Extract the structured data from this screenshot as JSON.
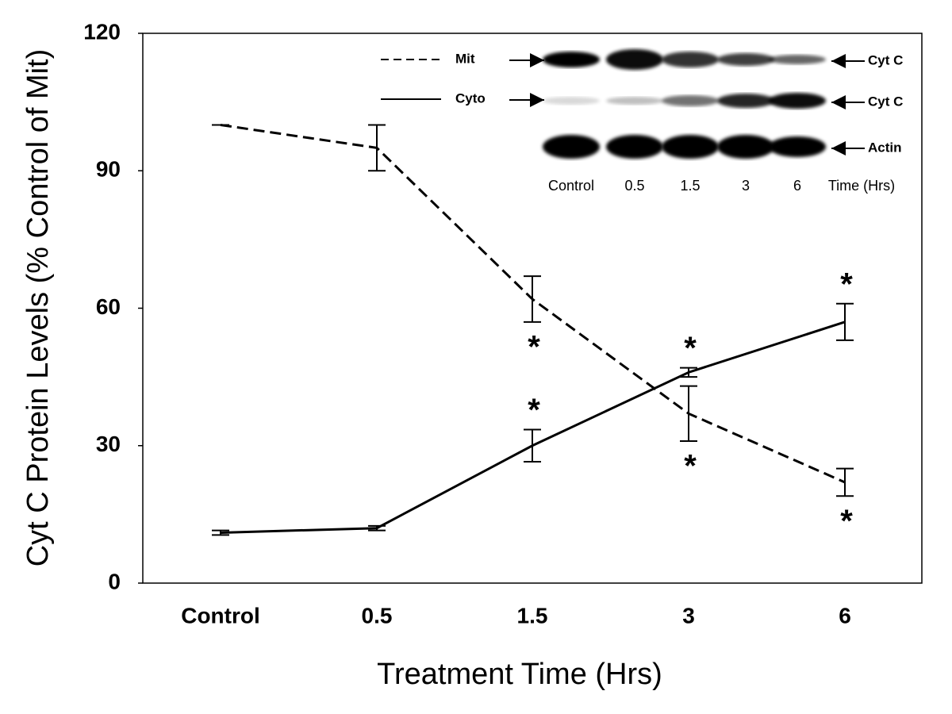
{
  "chart_data": {
    "type": "line",
    "y_label": "Cyt C Protein Levels (% Control of Mit)",
    "x_label": "Treatment Time (Hrs)",
    "categories": [
      "Control",
      "0.5",
      "1.5",
      "3",
      "6"
    ],
    "series": [
      {
        "name": "Mit",
        "color": "#000000",
        "style": "dashed",
        "values": [
          100,
          95,
          62,
          37,
          22
        ],
        "errors": [
          0,
          5,
          5,
          6,
          3
        ],
        "significance": [
          null,
          null,
          "*",
          "*",
          "*"
        ]
      },
      {
        "name": "Cyto",
        "color": "#000000",
        "style": "solid",
        "values": [
          11,
          12,
          30,
          46,
          57
        ],
        "errors": [
          0.5,
          0.5,
          3.5,
          1,
          4
        ],
        "significance": [
          null,
          null,
          "*",
          "*",
          "*"
        ]
      }
    ],
    "ylim": [
      0,
      120
    ],
    "yticks": [
      0,
      30,
      60,
      90,
      120
    ],
    "grid": false,
    "inset": {
      "rows": [
        "Cyt C",
        "Cyt C",
        "Actin"
      ],
      "lanes": [
        "Control",
        "0.5",
        "1.5",
        "3",
        "6"
      ],
      "lane_axis": "Time (Hrs)"
    }
  }
}
